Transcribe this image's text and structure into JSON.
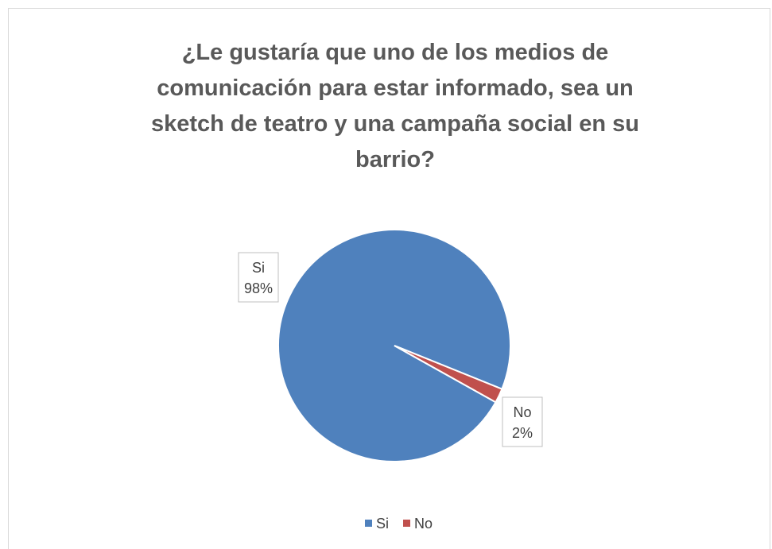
{
  "chart_data": {
    "type": "pie",
    "title": "¿Le gustaría que uno de los medios de comunicación para estar informado, sea un sketch de teatro y una campaña social en su barrio?",
    "categories": [
      "Si",
      "No"
    ],
    "values": [
      98,
      2
    ],
    "value_labels": [
      "98%",
      "2%"
    ],
    "colors": [
      "#4f81bd",
      "#c0504d"
    ],
    "legend": "bottom"
  }
}
